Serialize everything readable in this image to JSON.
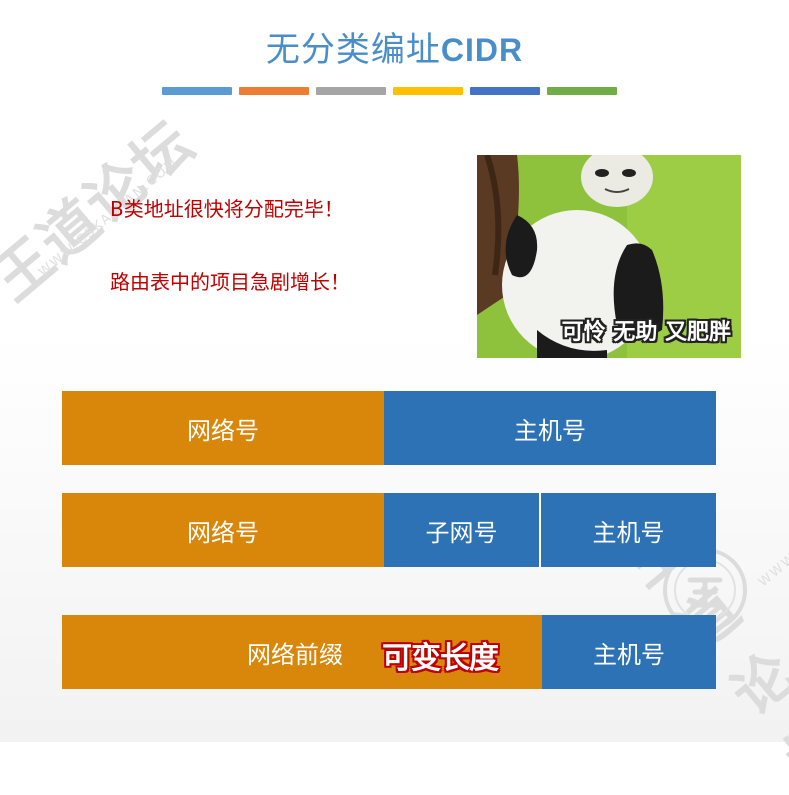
{
  "title": {
    "cjk": "无分类编址",
    "latin": "CIDR"
  },
  "title_colors": [
    "#5b9bd5",
    "#ed7d31",
    "#a5a5a5",
    "#ffc000",
    "#4472c4",
    "#70ad47"
  ],
  "watermark": {
    "brand": "王道论坛",
    "site": "WWW.CSKAOYAN.COM"
  },
  "notes": [
    "B类地址很快将分配完毕！",
    "路由表中的项目急剧增长！"
  ],
  "meme": {
    "caption": "可怜 无助 又肥胖"
  },
  "rows": [
    {
      "network": "网络号",
      "host": "主机号"
    },
    {
      "network": "网络号",
      "subnet": "子网号",
      "host": "主机号"
    },
    {
      "prefix": "网络前缀",
      "variable": "可变长度",
      "host": "主机号"
    }
  ]
}
